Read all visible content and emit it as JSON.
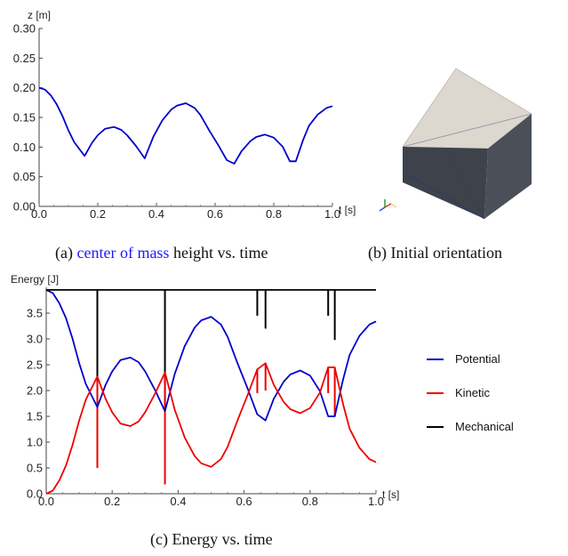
{
  "panel_a": {
    "caption_label": "(a)",
    "caption_link": "center of mass",
    "caption_rest": "height vs. time",
    "link_color": "#1a1aff"
  },
  "panel_b": {
    "caption": "(b) Initial orientation",
    "colors": {
      "top": "#dcd8cf",
      "side": "#4a4f58",
      "front": "#3d424b"
    }
  },
  "panel_c": {
    "caption": "(c) Energy vs. time"
  },
  "chart_data": [
    {
      "type": "line",
      "xlabel": "t [s]",
      "ylabel": "z [m]",
      "xlim": [
        0,
        1.0
      ],
      "ylim": [
        0,
        0.3
      ],
      "x_ticks": [
        "0.0",
        "0.2",
        "0.4",
        "0.6",
        "0.8",
        "1.0"
      ],
      "y_ticks": [
        "0.00",
        "0.05",
        "0.10",
        "0.15",
        "0.20",
        "0.25",
        "0.30"
      ],
      "series": [
        {
          "color": "#0000cc",
          "x": [
            0.0,
            0.02,
            0.04,
            0.06,
            0.08,
            0.1,
            0.12,
            0.155,
            0.18,
            0.2,
            0.225,
            0.255,
            0.28,
            0.3,
            0.33,
            0.36,
            0.39,
            0.42,
            0.45,
            0.47,
            0.5,
            0.53,
            0.55,
            0.58,
            0.61,
            0.64,
            0.665,
            0.69,
            0.72,
            0.74,
            0.77,
            0.8,
            0.83,
            0.855,
            0.875,
            0.9,
            0.92,
            0.95,
            0.98,
            1.0
          ],
          "y": [
            0.2,
            0.197,
            0.187,
            0.172,
            0.152,
            0.128,
            0.108,
            0.085,
            0.107,
            0.12,
            0.131,
            0.134,
            0.129,
            0.12,
            0.102,
            0.081,
            0.118,
            0.145,
            0.163,
            0.17,
            0.174,
            0.166,
            0.154,
            0.128,
            0.104,
            0.078,
            0.072,
            0.093,
            0.11,
            0.117,
            0.121,
            0.116,
            0.101,
            0.076,
            0.076,
            0.112,
            0.136,
            0.155,
            0.166,
            0.169
          ]
        }
      ]
    },
    {
      "type": "line",
      "xlabel": "t [s]",
      "ylabel": "Energy [J]",
      "xlim": [
        0,
        1.0
      ],
      "ylim": [
        0,
        4.0
      ],
      "x_ticks": [
        "0.0",
        "0.2",
        "0.4",
        "0.6",
        "0.8",
        "1.0"
      ],
      "y_ticks": [
        "0.0",
        "0.5",
        "1.0",
        "1.5",
        "2.0",
        "2.5",
        "3.0",
        "3.5"
      ],
      "legend": "right",
      "series": [
        {
          "name": "Potential",
          "color": "#0000cc",
          "x": [
            0.0,
            0.02,
            0.04,
            0.06,
            0.08,
            0.1,
            0.12,
            0.155,
            0.18,
            0.2,
            0.225,
            0.255,
            0.28,
            0.3,
            0.33,
            0.36,
            0.39,
            0.42,
            0.45,
            0.47,
            0.5,
            0.53,
            0.55,
            0.58,
            0.61,
            0.64,
            0.665,
            0.69,
            0.72,
            0.74,
            0.77,
            0.8,
            0.83,
            0.855,
            0.875,
            0.9,
            0.92,
            0.95,
            0.98,
            1.0
          ],
          "y": [
            3.95,
            3.89,
            3.69,
            3.4,
            3.0,
            2.53,
            2.13,
            1.68,
            2.11,
            2.37,
            2.59,
            2.64,
            2.55,
            2.37,
            2.01,
            1.6,
            2.33,
            2.86,
            3.22,
            3.36,
            3.43,
            3.28,
            3.04,
            2.53,
            2.05,
            1.54,
            1.42,
            1.84,
            2.17,
            2.31,
            2.39,
            2.29,
            1.99,
            1.5,
            1.5,
            2.21,
            2.69,
            3.06,
            3.28,
            3.34
          ]
        },
        {
          "name": "Kinetic",
          "color": "#ee0000",
          "x": [
            0.0,
            0.02,
            0.04,
            0.06,
            0.08,
            0.1,
            0.12,
            0.155,
            0.18,
            0.2,
            0.225,
            0.255,
            0.28,
            0.3,
            0.33,
            0.36,
            0.39,
            0.42,
            0.45,
            0.47,
            0.5,
            0.53,
            0.55,
            0.58,
            0.61,
            0.64,
            0.665,
            0.69,
            0.72,
            0.74,
            0.77,
            0.8,
            0.83,
            0.855,
            0.875,
            0.9,
            0.92,
            0.95,
            0.98,
            1.0
          ],
          "y": [
            0.0,
            0.06,
            0.26,
            0.55,
            0.95,
            1.42,
            1.82,
            2.27,
            1.84,
            1.58,
            1.36,
            1.31,
            1.4,
            1.58,
            1.94,
            2.35,
            1.62,
            1.09,
            0.73,
            0.59,
            0.52,
            0.67,
            0.91,
            1.42,
            1.9,
            2.41,
            2.53,
            2.11,
            1.78,
            1.64,
            1.56,
            1.66,
            1.96,
            2.45,
            2.45,
            1.74,
            1.26,
            0.89,
            0.67,
            0.61
          ]
        },
        {
          "name": "Mechanical",
          "color": "#000000",
          "x": [
            0.0,
            1.0
          ],
          "y": [
            3.95,
            3.95
          ]
        }
      ],
      "spikes": [
        {
          "series": "Mechanical",
          "x": 0.155,
          "to": 1.68
        },
        {
          "series": "Mechanical",
          "x": 0.36,
          "to": 1.6
        },
        {
          "series": "Mechanical",
          "x": 0.64,
          "to": 3.45
        },
        {
          "series": "Mechanical",
          "x": 0.665,
          "to": 3.2
        },
        {
          "series": "Mechanical",
          "x": 0.855,
          "to": 3.45
        },
        {
          "series": "Mechanical",
          "x": 0.875,
          "to": 2.98
        },
        {
          "series": "Kinetic",
          "x": 0.155,
          "to": 0.5
        },
        {
          "series": "Kinetic",
          "x": 0.36,
          "to": 0.18
        },
        {
          "series": "Kinetic",
          "x": 0.64,
          "to": 1.95
        },
        {
          "series": "Kinetic",
          "x": 0.665,
          "to": 2.0
        },
        {
          "series": "Kinetic",
          "x": 0.855,
          "to": 1.95
        },
        {
          "series": "Kinetic",
          "x": 0.875,
          "to": 1.5
        }
      ]
    }
  ]
}
